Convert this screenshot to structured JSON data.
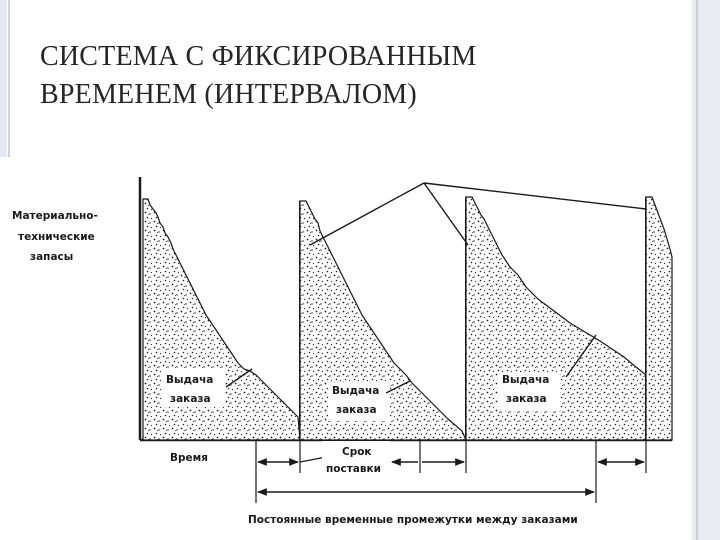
{
  "slide": {
    "title_line1": "СИСТЕМА С ФИКСИРОВАННЫМ",
    "title_line2": "ВРЕМЕНЕМ (ИНТЕРВАЛОМ)"
  },
  "diagram": {
    "y_label_line1": "Материально-",
    "y_label_line2": "технические",
    "y_label_line3": "запасы",
    "x_label": "Время",
    "order_label_line1": "Выдача",
    "order_label_line2": "заказа",
    "lead_time_line1": "Срок",
    "lead_time_line2": "поставки",
    "interval_label": "Постоянные временные промежутки между заказами"
  }
}
